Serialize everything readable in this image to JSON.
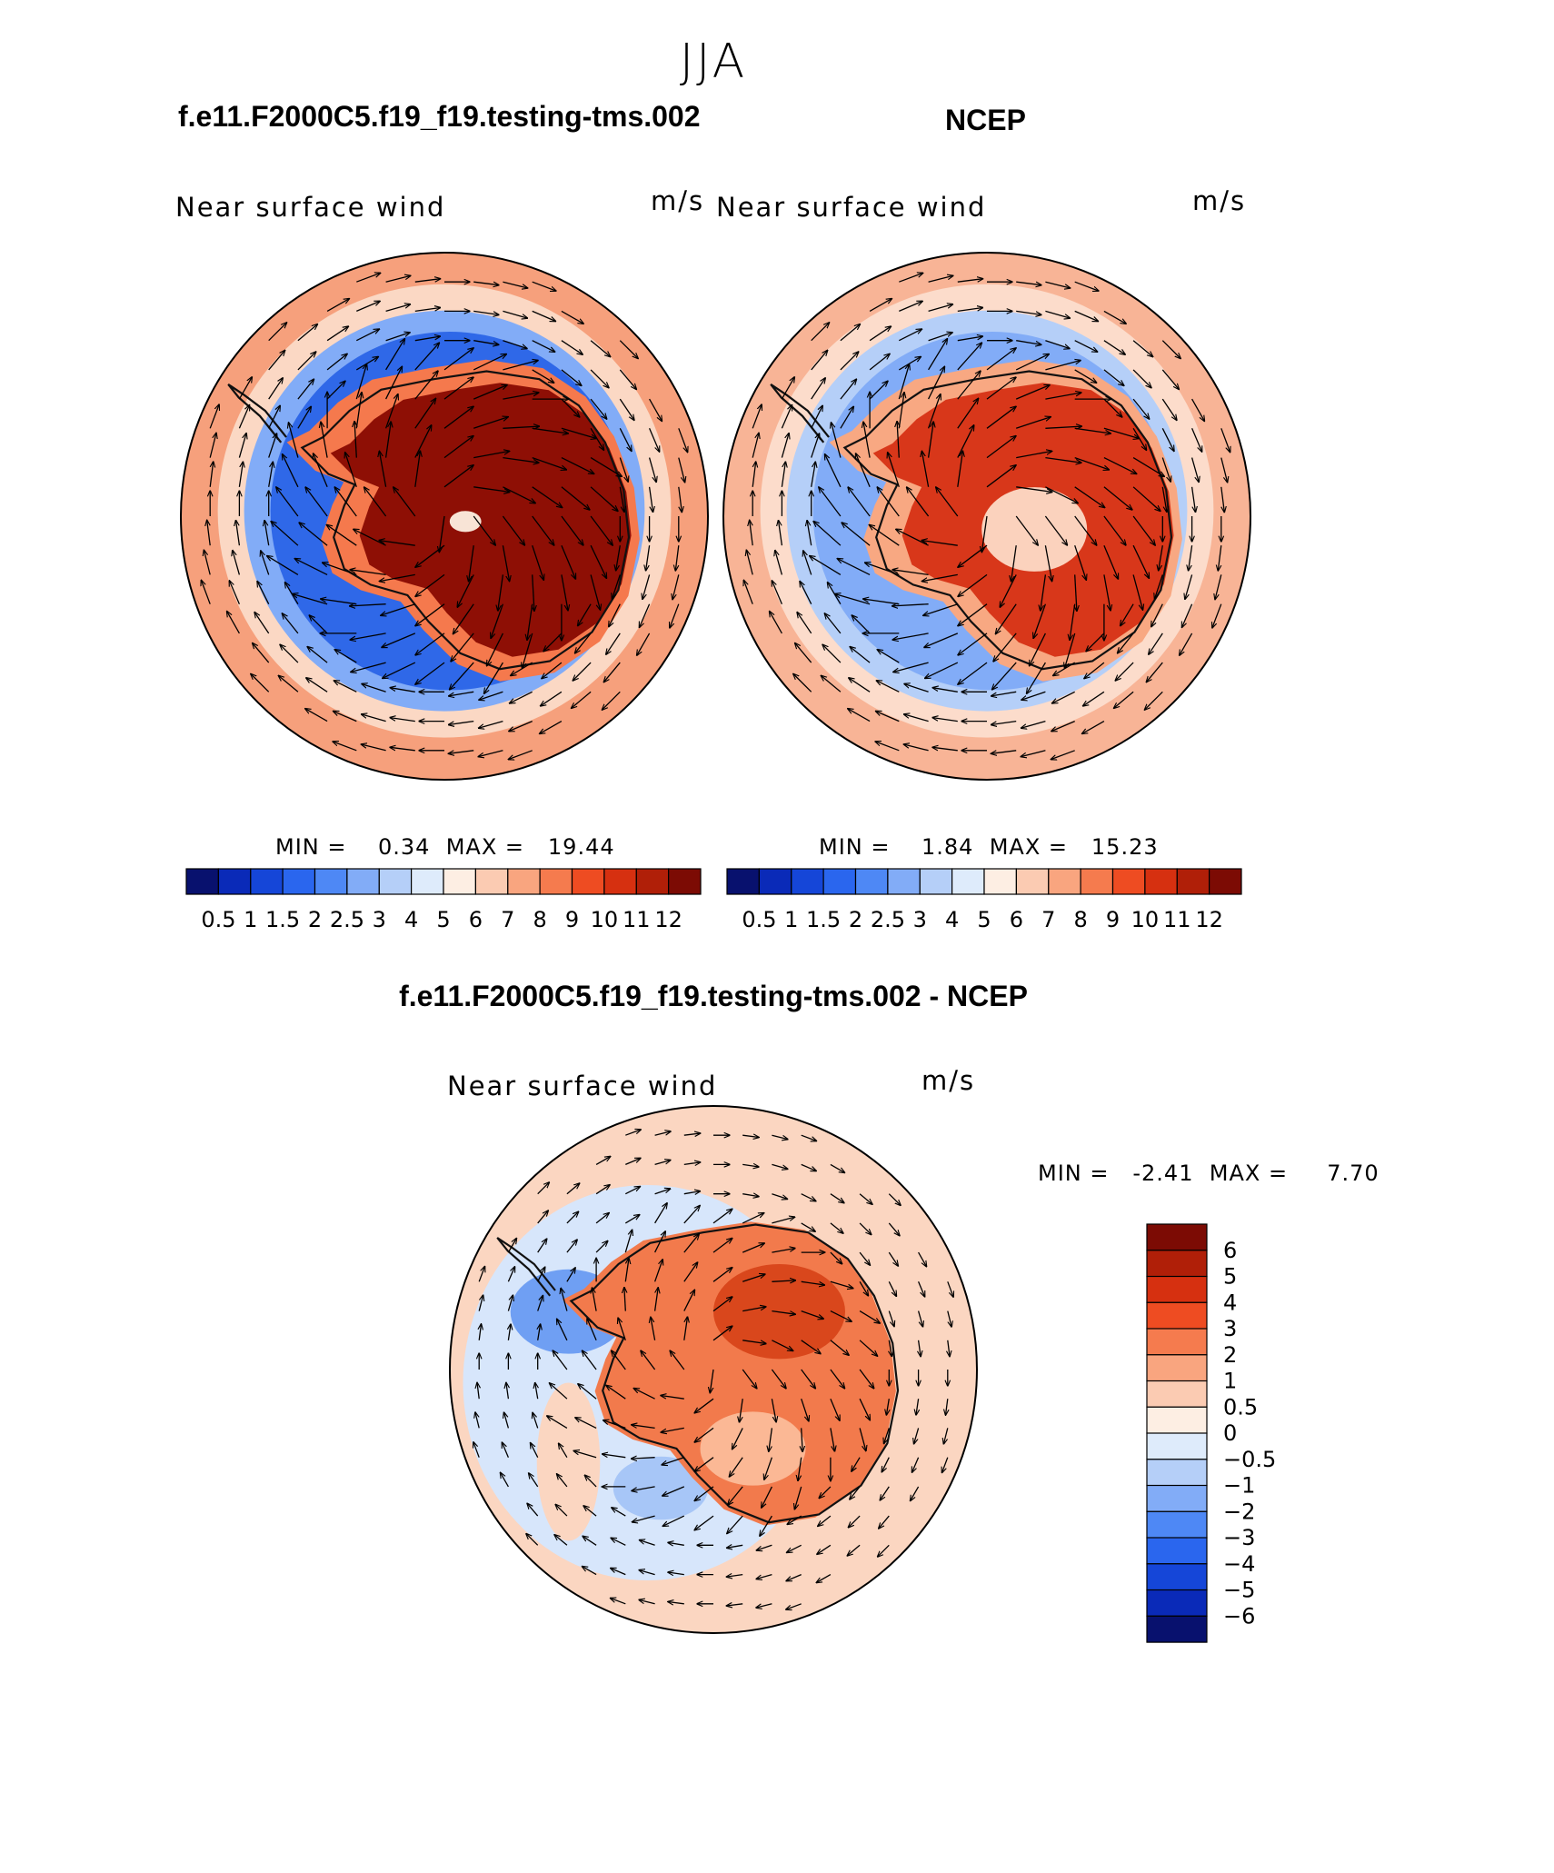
{
  "season": "JJA",
  "panels": [
    {
      "id": "model",
      "case_title": "f.e11.F2000C5.f19_f19.testing-tms.002",
      "field_label": "Near surface wind",
      "units": "m/s",
      "min_label": "MIN =",
      "min_value": "0.34",
      "max_label": "MAX =",
      "max_value": "19.44"
    },
    {
      "id": "obs",
      "case_title": "NCEP",
      "field_label": "Near surface wind",
      "units": "m/s",
      "min_label": "MIN =",
      "min_value": "1.84",
      "max_label": "MAX =",
      "max_value": "15.23"
    },
    {
      "id": "diff",
      "case_title": "f.e11.F2000C5.f19_f19.testing-tms.002 - NCEP",
      "field_label": "Near surface wind",
      "units": "m/s",
      "min_label": "MIN =",
      "min_value": "-2.41",
      "max_label": "MAX =",
      "max_value": "7.70"
    }
  ],
  "abs_colorbar": {
    "ticks": [
      "0.5",
      "1",
      "1.5",
      "2",
      "2.5",
      "3",
      "4",
      "5",
      "6",
      "7",
      "8",
      "9",
      "10",
      "11",
      "12"
    ],
    "colors": [
      "#08116e",
      "#0a2ab8",
      "#1546d8",
      "#2a66ee",
      "#4e88f5",
      "#82acf7",
      "#b5cff8",
      "#deebfb",
      "#fdeee3",
      "#fbcbb2",
      "#f9a57f",
      "#f57b4e",
      "#ee4c22",
      "#d63010",
      "#b01f08",
      "#7c0b04"
    ]
  },
  "diff_colorbar": {
    "ticks": [
      "6",
      "5",
      "4",
      "3",
      "2",
      "1",
      "0.5",
      "0",
      "-0.5",
      "-1",
      "-2",
      "-3",
      "-4",
      "-5",
      "-6"
    ],
    "colors": [
      "#7c0b04",
      "#b01f08",
      "#d63010",
      "#ee4c22",
      "#f57b4e",
      "#f9a57f",
      "#fbcbb2",
      "#fdeee3",
      "#deebfb",
      "#b5cff8",
      "#82acf7",
      "#4e88f5",
      "#2a66ee",
      "#1546d8",
      "#0a2ab8",
      "#08116e"
    ]
  }
}
